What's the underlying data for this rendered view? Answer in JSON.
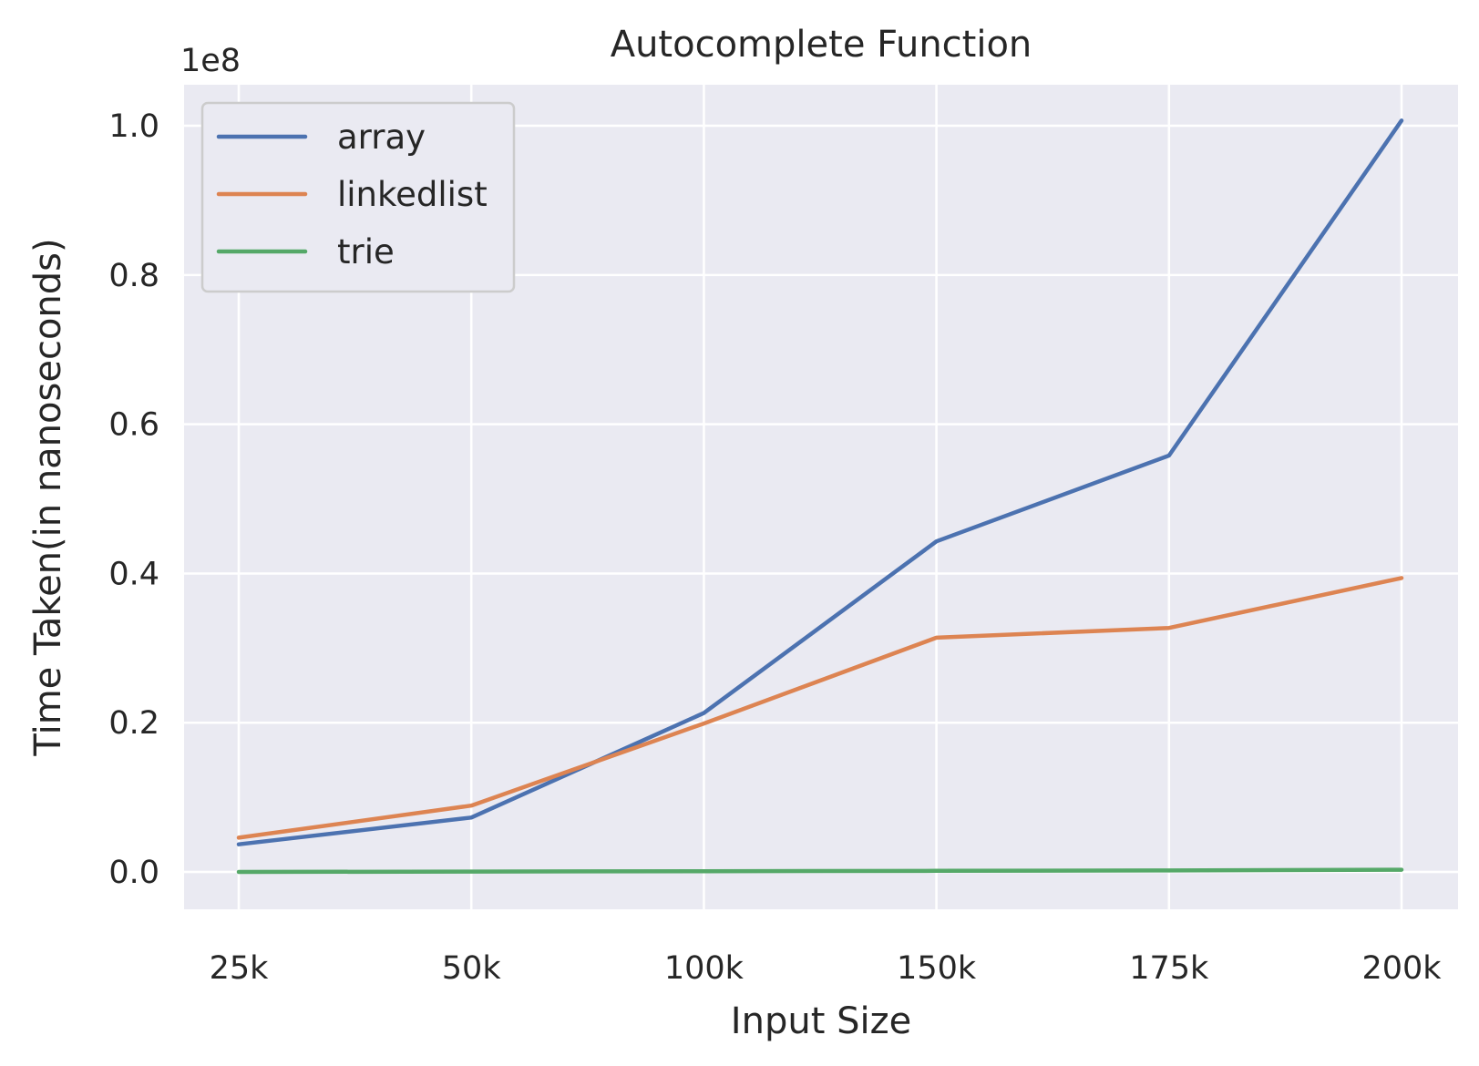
{
  "chart_data": {
    "type": "line",
    "title": "Autocomplete Function",
    "xlabel": "Input Size",
    "ylabel": "Time Taken(in nanoseconds)",
    "y_offset_label": "1e8",
    "categories": [
      "25k",
      "50k",
      "100k",
      "150k",
      "175k",
      "200k"
    ],
    "yticks": [
      0.0,
      0.2,
      0.4,
      0.6,
      0.8,
      1.0
    ],
    "ytick_labels": [
      "0.0",
      "0.2",
      "0.4",
      "0.6",
      "0.8",
      "1.0"
    ],
    "ylim": [
      -0.05,
      1.055
    ],
    "grid": true,
    "legend_position": "top-left",
    "series": [
      {
        "name": "array",
        "color": "#4c72b0",
        "values": [
          0.037,
          0.073,
          0.213,
          0.443,
          0.558,
          1.007
        ]
      },
      {
        "name": "linkedlist",
        "color": "#dd8452",
        "values": [
          0.046,
          0.089,
          0.199,
          0.314,
          0.327,
          0.394
        ]
      },
      {
        "name": "trie",
        "color": "#55a868",
        "values": [
          0.0,
          0.0005,
          0.001,
          0.0015,
          0.002,
          0.003
        ]
      }
    ]
  }
}
